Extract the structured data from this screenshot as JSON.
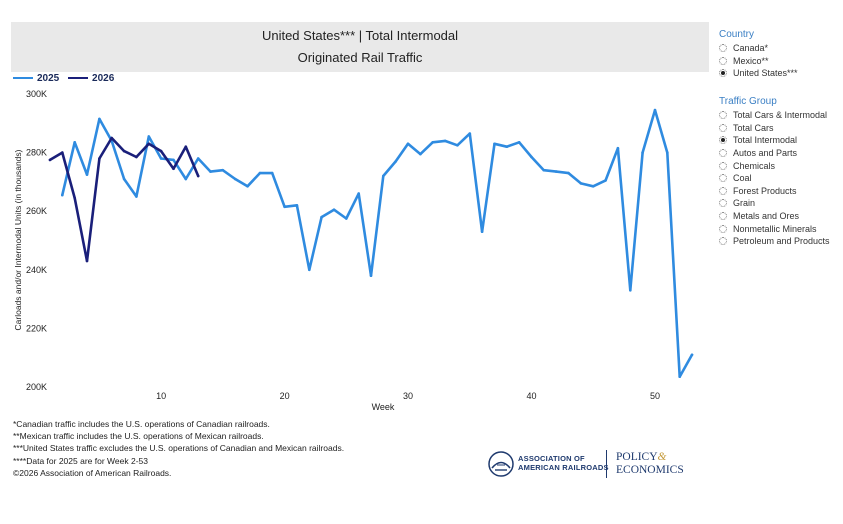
{
  "title": {
    "line1": "United States*** | Total Intermodal",
    "line2": "Originated Rail Traffic"
  },
  "colors": {
    "series_2025": "#2f8be0",
    "series_2026": "#1a1f7a",
    "panel_heading": "#3a7fc4",
    "title_bg": "#e9e9e9"
  },
  "legend": [
    {
      "label": "2025"
    },
    {
      "label": "2026"
    }
  ],
  "chart_data": {
    "type": "line",
    "title": "United States*** | Total Intermodal Originated Rail Traffic",
    "xlabel": "Week",
    "ylabel": "Carloads and/or Intermodal Units (in thousands)",
    "xlim": [
      1,
      53
    ],
    "ylim": [
      200000,
      300000
    ],
    "xticks": [
      10,
      20,
      30,
      40,
      50
    ],
    "yticks": [
      200000,
      220000,
      240000,
      260000,
      280000,
      300000
    ],
    "ytick_labels": [
      "200K",
      "220K",
      "240K",
      "260K",
      "280K",
      "300K"
    ],
    "grid": false,
    "legend_position": "top-left",
    "series": [
      {
        "name": "2025",
        "x": [
          2,
          3,
          4,
          5,
          6,
          7,
          8,
          9,
          10,
          11,
          12,
          13,
          14,
          15,
          16,
          17,
          18,
          19,
          20,
          21,
          22,
          23,
          24,
          25,
          26,
          27,
          28,
          29,
          30,
          31,
          32,
          33,
          34,
          35,
          36,
          37,
          38,
          39,
          40,
          41,
          42,
          43,
          44,
          45,
          46,
          47,
          48,
          49,
          50,
          51,
          52,
          53
        ],
        "values": [
          265500,
          283500,
          272500,
          291500,
          284000,
          271000,
          265000,
          285500,
          278000,
          277500,
          271000,
          278000,
          273500,
          274000,
          271000,
          268500,
          273000,
          273000,
          261500,
          262000,
          240000,
          258000,
          260500,
          257500,
          266000,
          238000,
          272000,
          277000,
          283000,
          279500,
          283500,
          284000,
          282500,
          286500,
          253000,
          283000,
          282000,
          283500,
          278500,
          274000,
          273500,
          273000,
          269500,
          268500,
          270500,
          281500,
          233000,
          280000,
          294500,
          280000,
          203500,
          211000
        ]
      },
      {
        "name": "2026",
        "x": [
          1,
          2,
          3,
          4,
          5,
          6,
          7,
          8,
          9,
          10,
          11,
          12,
          13
        ],
        "values": [
          277500,
          280000,
          264500,
          243000,
          278000,
          285000,
          280500,
          278500,
          283000,
          280500,
          274500,
          282000,
          272000
        ]
      }
    ]
  },
  "panels": {
    "country": {
      "heading": "Country",
      "options": [
        "Canada*",
        "Mexico**",
        "United States***"
      ],
      "selected": "United States***"
    },
    "traffic_group": {
      "heading": "Traffic Group",
      "options": [
        "Total Cars & Intermodal",
        "Total Cars",
        "Total Intermodal",
        "Autos and Parts",
        "Chemicals",
        "Coal",
        "Forest Products",
        "Grain",
        "Metals and Ores",
        "Nonmetallic Minerals",
        "Petroleum and Products"
      ],
      "selected": "Total Intermodal"
    }
  },
  "footnotes": [
    "*Canadian traffic includes the U.S. operations of Canadian railroads.",
    "**Mexican traffic includes the U.S. operations of Mexican railroads.",
    "***United States traffic excludes the U.S. operations of Canadian and Mexican railroads.",
    "****Data for 2025 are for Week 2-53",
    "©2026 Association of American Railroads."
  ],
  "logo": {
    "aar_line1": "ASSOCIATION OF",
    "aar_line2": "AMERICAN RAILROADS",
    "pe_line1": "POLICY",
    "pe_amp": "&",
    "pe_line2": "ECONOMICS"
  }
}
